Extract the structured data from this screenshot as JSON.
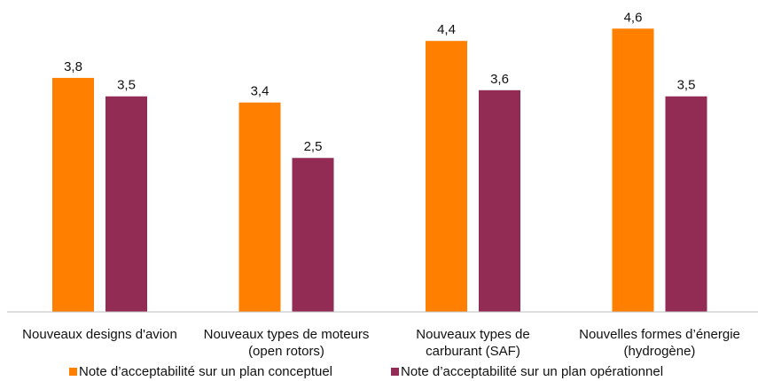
{
  "chart_data": {
    "type": "bar",
    "categories": [
      [
        "Nouveaux designs d'avion"
      ],
      [
        "Nouveaux types de moteurs",
        "(open rotors)"
      ],
      [
        "Nouveaux types de",
        "carburant (SAF)"
      ],
      [
        "Nouvelles formes d’énergie",
        "(hydrogène)"
      ]
    ],
    "series": [
      {
        "name": "Note d’acceptabilité sur un plan conceptuel",
        "color": "#ff8000",
        "values": [
          3.8,
          3.4,
          4.4,
          4.6
        ],
        "value_labels": [
          "3,8",
          "3,4",
          "4,4",
          "4,6"
        ]
      },
      {
        "name": "Note d’acceptabilité sur un plan opérationnel",
        "color": "#922c54",
        "values": [
          3.5,
          2.5,
          3.6,
          3.5
        ],
        "value_labels": [
          "3,5",
          "2,5",
          "3,6",
          "3,5"
        ]
      }
    ],
    "legend": "bottom"
  }
}
